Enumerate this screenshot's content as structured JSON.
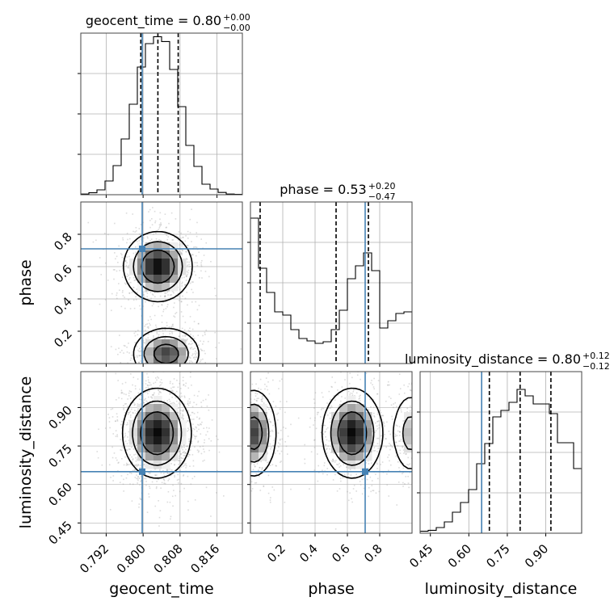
{
  "chart_data": {
    "type": "corner",
    "parameters": [
      "geocent_time",
      "phase",
      "luminosity_distance"
    ],
    "truths": {
      "geocent_time": 0.7998,
      "phase": 0.71,
      "luminosity_distance": 0.65
    },
    "colors": {
      "truth": "#4682b4",
      "hist": "#000000",
      "grid": "#b0b0b0",
      "density": "#000000"
    },
    "grid": true,
    "titles": [
      {
        "param": "geocent_time",
        "text": "geocent_time = 0.80",
        "plus": "+0.00",
        "minus": "−0.00"
      },
      {
        "param": "phase",
        "text": "phase = 0.53",
        "plus": "+0.20",
        "minus": "−0.47"
      },
      {
        "param": "luminosity_distance",
        "text": "luminosity_distance = 0.80",
        "plus": "+0.12",
        "minus": "−0.12"
      }
    ],
    "axes": {
      "geocent_time": {
        "label": "geocent_time",
        "range": [
          0.7865,
          0.8215
        ],
        "ticks": [
          0.792,
          0.8,
          0.808,
          0.816
        ],
        "tick_labels": [
          "0.792",
          "0.800",
          "0.808",
          "0.816"
        ]
      },
      "phase": {
        "label": "phase",
        "range": [
          0.0,
          1.0
        ],
        "ticks": [
          0.2,
          0.4,
          0.6,
          0.8
        ],
        "tick_labels": [
          "0.2",
          "0.4",
          "0.6",
          "0.8"
        ]
      },
      "luminosity_distance": {
        "label": "luminosity_distance",
        "range": [
          0.41,
          1.04
        ],
        "ticks": [
          0.45,
          0.6,
          0.75,
          0.9
        ],
        "tick_labels": [
          "0.45",
          "0.60",
          "0.75",
          "0.90"
        ]
      }
    },
    "histograms": [
      {
        "param": "geocent_time",
        "quantiles": [
          0.7995,
          0.8032,
          0.8076
        ],
        "edges": [
          0.7865,
          0.78825,
          0.79,
          0.79175,
          0.7935,
          0.79525,
          0.797,
          0.79875,
          0.8005,
          0.80225,
          0.804,
          0.80575,
          0.8075,
          0.80925,
          0.811,
          0.81275,
          0.8145,
          0.81625,
          0.818,
          0.81975,
          0.8215
        ],
        "counts": [
          4,
          12,
          30,
          85,
          180,
          345,
          560,
          790,
          935,
          978,
          948,
          775,
          545,
          305,
          175,
          65,
          35,
          14,
          4,
          2
        ],
        "ymax": 1000
      },
      {
        "param": "phase",
        "quantiles": [
          0.06,
          0.53,
          0.73
        ],
        "edges": [
          0.0,
          0.05,
          0.1,
          0.15,
          0.2,
          0.25,
          0.3,
          0.35,
          0.4,
          0.45,
          0.5,
          0.55,
          0.6,
          0.65,
          0.7,
          0.75,
          0.8,
          0.85,
          0.9,
          0.95,
          1.0
        ],
        "counts": [
          900,
          590,
          440,
          320,
          300,
          210,
          155,
          140,
          125,
          135,
          210,
          330,
          525,
          605,
          685,
          575,
          220,
          265,
          310,
          320
        ],
        "ymax": 1000
      },
      {
        "param": "luminosity_distance",
        "quantiles": [
          0.68,
          0.8,
          0.92
        ],
        "edges": [
          0.41,
          0.4415,
          0.473,
          0.5045,
          0.536,
          0.5675,
          0.599,
          0.6305,
          0.662,
          0.6935,
          0.725,
          0.7565,
          0.788,
          0.8195,
          0.851,
          0.8825,
          0.914,
          0.9455,
          0.977,
          1.0085,
          1.04
        ],
        "counts": [
          12,
          18,
          35,
          70,
          130,
          190,
          270,
          430,
          555,
          720,
          760,
          810,
          890,
          850,
          800,
          800,
          740,
          560,
          560,
          400
        ],
        "ymax": 1000
      }
    ],
    "contours_2d": [
      {
        "x": "geocent_time",
        "y": "phase",
        "modes": [
          {
            "cx": 0.8032,
            "cy": 0.6,
            "sx": 0.0036,
            "sy": 0.105,
            "w": 0.55
          },
          {
            "cx": 0.805,
            "cy": 0.06,
            "sx": 0.0036,
            "sy": 0.08,
            "w": 0.45
          }
        ]
      },
      {
        "x": "geocent_time",
        "y": "luminosity_distance",
        "modes": [
          {
            "cx": 0.803,
            "cy": 0.8,
            "sx": 0.0036,
            "sy": 0.085,
            "w": 1.0
          }
        ]
      },
      {
        "x": "phase",
        "y": "luminosity_distance",
        "modes": [
          {
            "cx": 0.63,
            "cy": 0.8,
            "sx": 0.09,
            "sy": 0.085,
            "w": 0.55
          },
          {
            "cx": 0.02,
            "cy": 0.8,
            "sx": 0.07,
            "sy": 0.085,
            "w": 0.45
          },
          {
            "cx": 0.99,
            "cy": 0.8,
            "sx": 0.06,
            "sy": 0.085,
            "w": 0.25
          }
        ]
      }
    ]
  }
}
